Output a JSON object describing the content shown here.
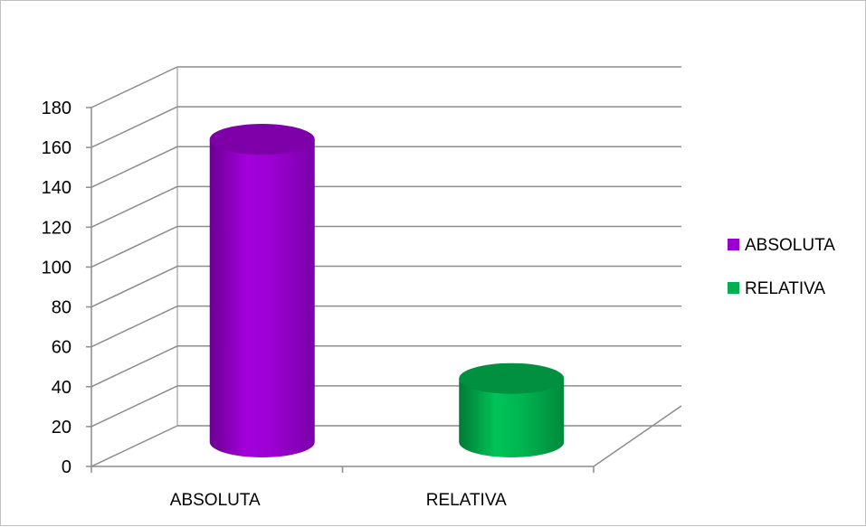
{
  "chart_data": {
    "type": "bar",
    "style": "3d-cylinder",
    "categories": [
      "ABSOLUTA",
      "RELATIVA"
    ],
    "series": [
      {
        "name": "ABSOLUTA",
        "values": [
          170,
          null
        ],
        "color": "#9900CC"
      },
      {
        "name": "RELATIVA",
        "values": [
          null,
          50
        ],
        "color": "#00B050"
      }
    ],
    "values": [
      170,
      50
    ],
    "ylim": [
      0,
      180
    ],
    "yticks": [
      0,
      20,
      40,
      60,
      80,
      100,
      120,
      140,
      160,
      180
    ],
    "grid": true,
    "legend_position": "right",
    "legend": [
      "ABSOLUTA",
      "RELATIVA"
    ]
  }
}
